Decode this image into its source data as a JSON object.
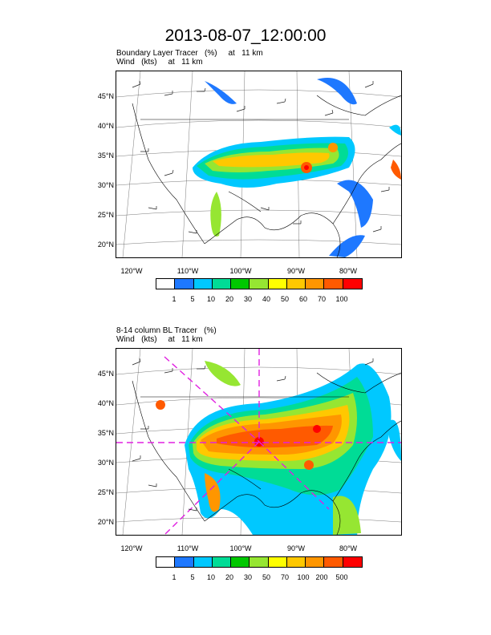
{
  "title": "2013-08-07_12:00:00",
  "panel1": {
    "line1": "Boundary Layer Tracer   (%)     at   11 km",
    "line2": "Wind   (kts)     at   11 km",
    "colorbar_labels": [
      "1",
      "5",
      "10",
      "20",
      "30",
      "40",
      "50",
      "60",
      "70",
      "100"
    ]
  },
  "panel2": {
    "line1": "8-14 column BL Tracer   (%)",
    "line2": "Wind   (kts)     at   11 km",
    "colorbar_labels": [
      "1",
      "5",
      "10",
      "20",
      "30",
      "50",
      "70",
      "100",
      "200",
      "500"
    ]
  },
  "lat_labels": [
    "45°N",
    "40°N",
    "35°N",
    "30°N",
    "25°N",
    "20°N"
  ],
  "lon_labels": [
    "120°W",
    "110°W",
    "100°W",
    "90°W",
    "80°W"
  ],
  "colorbar_colors": [
    "#ffffff",
    "#1e78ff",
    "#00c8ff",
    "#00dc96",
    "#00c800",
    "#96e632",
    "#ffff00",
    "#ffc800",
    "#ff9600",
    "#ff5a00",
    "#ff0000"
  ]
}
